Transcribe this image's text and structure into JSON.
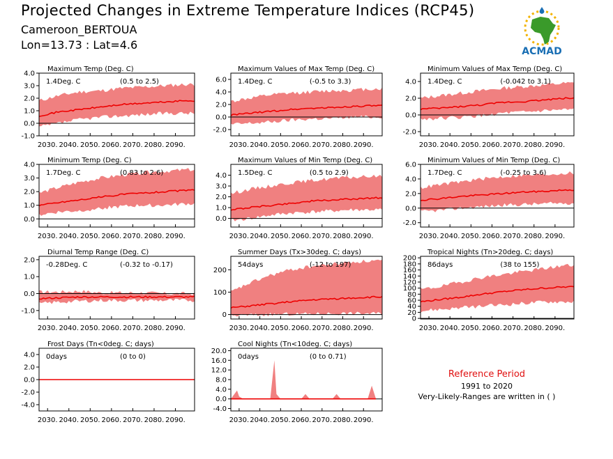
{
  "header": {
    "title": "Projected Changes in Extreme Temperature Indices (RCP45)",
    "subtitle": "Cameroon_BERTOUA",
    "coords": "Lon=13.73 : Lat=4.6",
    "logo_text": "ACMAD"
  },
  "reference": {
    "title": "Reference Period",
    "years": "1991 to 2020",
    "note": "Very-Likely-Ranges are written in ( )"
  },
  "colors": {
    "band": "#f08080",
    "line": "#ee0000",
    "zero": "#000000",
    "logo_blue": "#1a6fb4",
    "logo_green": "#3a9a2a",
    "logo_yellow": "#f2b300"
  },
  "chart_data": [
    {
      "type": "area",
      "title": "Maximum Temp (Deg. C)",
      "value_label": "1.4Deg. C",
      "range_label": "(0.5 to 2.5)",
      "x": [
        2026,
        2035,
        2045,
        2055,
        2065,
        2075,
        2085,
        2095,
        2099
      ],
      "median": [
        0.6,
        0.9,
        1.1,
        1.3,
        1.5,
        1.6,
        1.7,
        1.8,
        1.8
      ],
      "lower": [
        -0.3,
        0.0,
        0.3,
        0.5,
        0.6,
        0.7,
        0.8,
        0.8,
        0.8
      ],
      "upper": [
        1.8,
        2.2,
        2.5,
        2.6,
        2.8,
        2.9,
        3.0,
        3.1,
        3.1
      ],
      "ylim": [
        -1.0,
        4.0
      ],
      "yticks": [
        -1.0,
        0.0,
        1.0,
        2.0,
        3.0,
        4.0
      ],
      "xticks": [
        2030,
        2040,
        2050,
        2060,
        2070,
        2080,
        2090
      ]
    },
    {
      "type": "area",
      "title": "Maximum Values of Max Temp (Deg. C)",
      "value_label": "1.4Deg. C",
      "range_label": "(-0.5 to 3.3)",
      "x": [
        2026,
        2035,
        2045,
        2055,
        2065,
        2075,
        2085,
        2095,
        2099
      ],
      "median": [
        0.3,
        0.6,
        0.9,
        1.2,
        1.4,
        1.5,
        1.7,
        1.8,
        1.8
      ],
      "lower": [
        -1.2,
        -1.0,
        -0.8,
        -0.5,
        -0.3,
        -0.2,
        0.0,
        0.0,
        0.0
      ],
      "upper": [
        2.5,
        3.0,
        3.5,
        3.8,
        4.0,
        4.2,
        4.3,
        4.5,
        4.5
      ],
      "ylim": [
        -3.0,
        7.0
      ],
      "yticks": [
        -2.0,
        0.0,
        2.0,
        4.0,
        6.0
      ],
      "xticks": [
        2030,
        2040,
        2050,
        2060,
        2070,
        2080,
        2090
      ]
    },
    {
      "type": "area",
      "title": "Minimum Values of Max Temp (Deg. C)",
      "value_label": "1.4Deg. C",
      "range_label": "(-0.042 to 3.1)",
      "x": [
        2026,
        2035,
        2045,
        2055,
        2065,
        2075,
        2085,
        2095,
        2099
      ],
      "median": [
        0.7,
        0.8,
        1.0,
        1.2,
        1.5,
        1.6,
        1.8,
        2.0,
        2.0
      ],
      "lower": [
        -0.5,
        -0.4,
        -0.3,
        -0.1,
        0.2,
        0.3,
        0.5,
        0.6,
        0.6
      ],
      "upper": [
        2.0,
        2.3,
        2.6,
        2.9,
        3.2,
        3.4,
        3.6,
        3.8,
        3.8
      ],
      "ylim": [
        -2.5,
        5.0
      ],
      "yticks": [
        -2.0,
        0.0,
        2.0,
        4.0
      ],
      "xticks": [
        2030,
        2040,
        2050,
        2060,
        2070,
        2080,
        2090
      ]
    },
    {
      "type": "area",
      "title": "Minimum Temp (Deg. C)",
      "value_label": "1.7Deg. C",
      "range_label": "(0.83 to 2.6)",
      "x": [
        2026,
        2035,
        2045,
        2055,
        2065,
        2075,
        2085,
        2095,
        2099
      ],
      "median": [
        1.0,
        1.2,
        1.4,
        1.6,
        1.8,
        1.9,
        2.0,
        2.1,
        2.1
      ],
      "lower": [
        0.3,
        0.5,
        0.6,
        0.8,
        0.9,
        1.0,
        1.0,
        1.1,
        1.1
      ],
      "upper": [
        1.9,
        2.3,
        2.7,
        3.0,
        3.2,
        3.4,
        3.5,
        3.6,
        3.6
      ],
      "ylim": [
        -0.6,
        4.0
      ],
      "yticks": [
        0.0,
        1.0,
        2.0,
        3.0,
        4.0
      ],
      "xticks": [
        2030,
        2040,
        2050,
        2060,
        2070,
        2080,
        2090
      ]
    },
    {
      "type": "area",
      "title": "Maximum Values of Min Temp (Deg. C)",
      "value_label": "1.5Deg. C",
      "range_label": "(0.5 to 2.9)",
      "x": [
        2026,
        2035,
        2045,
        2055,
        2065,
        2075,
        2085,
        2095,
        2099
      ],
      "median": [
        0.8,
        1.0,
        1.2,
        1.4,
        1.6,
        1.7,
        1.8,
        1.9,
        1.9
      ],
      "lower": [
        -0.2,
        0.0,
        0.3,
        0.5,
        0.6,
        0.7,
        0.8,
        0.8,
        0.8
      ],
      "upper": [
        2.3,
        2.7,
        3.0,
        3.3,
        3.5,
        3.7,
        3.8,
        3.9,
        3.9
      ],
      "ylim": [
        -0.8,
        5.0
      ],
      "yticks": [
        0.0,
        1.0,
        2.0,
        3.0,
        4.0
      ],
      "xticks": [
        2030,
        2040,
        2050,
        2060,
        2070,
        2080,
        2090
      ]
    },
    {
      "type": "area",
      "title": "Minimum Values of Min Temp (Deg. C)",
      "value_label": "1.7Deg. C",
      "range_label": "(-0.25 to 3.6)",
      "x": [
        2026,
        2035,
        2045,
        2055,
        2065,
        2075,
        2085,
        2095,
        2099
      ],
      "median": [
        1.1,
        1.3,
        1.6,
        1.8,
        2.0,
        2.2,
        2.3,
        2.5,
        2.5
      ],
      "lower": [
        -0.5,
        -0.3,
        0.0,
        0.2,
        0.4,
        0.5,
        0.6,
        0.7,
        0.7
      ],
      "upper": [
        2.8,
        3.2,
        3.6,
        4.0,
        4.3,
        4.5,
        4.6,
        4.8,
        4.8
      ],
      "ylim": [
        -2.6,
        6.0
      ],
      "yticks": [
        -2.0,
        0.0,
        2.0,
        4.0,
        6.0
      ],
      "xticks": [
        2030,
        2040,
        2050,
        2060,
        2070,
        2080,
        2090
      ]
    },
    {
      "type": "area",
      "title": "Diurnal Temp Range (Deg. C)",
      "value_label": "-0.28Deg. C",
      "range_label": "(-0.32 to -0.17)",
      "x": [
        2026,
        2035,
        2045,
        2055,
        2065,
        2075,
        2085,
        2095,
        2099
      ],
      "median": [
        -0.3,
        -0.25,
        -0.2,
        -0.2,
        -0.2,
        -0.2,
        -0.2,
        -0.2,
        -0.2
      ],
      "lower": [
        -0.6,
        -0.5,
        -0.45,
        -0.4,
        -0.4,
        -0.4,
        -0.4,
        -0.4,
        -0.4
      ],
      "upper": [
        0.1,
        0.1,
        0.15,
        0.05,
        0.05,
        0.05,
        0.0,
        0.0,
        0.0
      ],
      "ylim": [
        -1.5,
        2.2
      ],
      "yticks": [
        -1.0,
        0.0,
        1.0,
        2.0
      ],
      "xticks": [
        2030,
        2040,
        2050,
        2060,
        2070,
        2080,
        2090
      ]
    },
    {
      "type": "area",
      "title": "Summer Days (Tx>30deg. C; days)",
      "value_label": "54days",
      "range_label": "(-12 to 197)",
      "x": [
        2026,
        2035,
        2045,
        2055,
        2065,
        2075,
        2085,
        2095,
        2099
      ],
      "median": [
        30,
        38,
        48,
        57,
        65,
        70,
        74,
        78,
        78
      ],
      "lower": [
        -5,
        -2,
        0,
        2,
        3,
        5,
        5,
        5,
        5
      ],
      "upper": [
        100,
        140,
        175,
        200,
        215,
        225,
        235,
        240,
        240
      ],
      "ylim": [
        -20,
        260
      ],
      "yticks": [
        0,
        100,
        200
      ],
      "xticks": [
        2030,
        2040,
        2050,
        2060,
        2070,
        2080,
        2090
      ]
    },
    {
      "type": "area",
      "title": "Tropical Nights (Tn>20deg. C; days)",
      "value_label": "86days",
      "range_label": "(38 to 155)",
      "x": [
        2026,
        2035,
        2045,
        2055,
        2065,
        2075,
        2085,
        2095,
        2099
      ],
      "median": [
        55,
        62,
        70,
        80,
        88,
        95,
        100,
        104,
        104
      ],
      "lower": [
        25,
        30,
        35,
        40,
        45,
        50,
        55,
        55,
        55
      ],
      "upper": [
        95,
        105,
        120,
        135,
        145,
        155,
        165,
        175,
        175
      ],
      "ylim": [
        -2,
        205
      ],
      "yticks": [
        0,
        20,
        40,
        60,
        80,
        100,
        120,
        140,
        160,
        180,
        200
      ],
      "xticks": [
        2030,
        2040,
        2050,
        2060,
        2070,
        2080,
        2090
      ]
    },
    {
      "type": "area",
      "title": "Frost Days (Tn<0deg. C; days)",
      "value_label": "0days",
      "range_label": "(0 to 0)",
      "x": [
        2026,
        2099
      ],
      "median": [
        0,
        0
      ],
      "lower": [
        0,
        0
      ],
      "upper": [
        0,
        0
      ],
      "ylim": [
        -5.0,
        5.0
      ],
      "yticks": [
        -4.0,
        -2.0,
        0.0,
        2.0,
        4.0
      ],
      "xticks": [
        2030,
        2040,
        2050,
        2060,
        2070,
        2080,
        2090
      ]
    },
    {
      "type": "area",
      "title": "Cool Nights (Tn<10deg. C; days)",
      "value_label": "0days",
      "range_label": "(0 to 0.71)",
      "x": [
        2026,
        2029,
        2030,
        2032,
        2045,
        2047,
        2048,
        2050,
        2060,
        2062,
        2064,
        2075,
        2077,
        2079,
        2092,
        2094,
        2096
      ],
      "median": [
        0,
        0,
        0,
        0,
        0,
        0,
        0,
        0,
        0,
        0,
        0,
        0,
        0,
        0,
        0,
        0,
        0
      ],
      "lower": [
        0,
        0,
        0,
        0,
        0,
        0,
        0,
        0,
        0,
        0,
        0,
        0,
        0,
        0,
        0,
        0,
        0
      ],
      "upper": [
        0,
        3.5,
        1,
        0,
        0,
        16,
        2,
        0,
        0,
        2,
        0,
        0,
        2,
        0,
        0,
        5.5,
        0
      ],
      "ylim": [
        -5.0,
        21.0
      ],
      "yticks": [
        -4.0,
        0.0,
        4.0,
        8.0,
        12.0,
        16.0,
        20.0
      ],
      "xticks": [
        2030,
        2040,
        2050,
        2060,
        2070,
        2080,
        2090
      ]
    }
  ]
}
